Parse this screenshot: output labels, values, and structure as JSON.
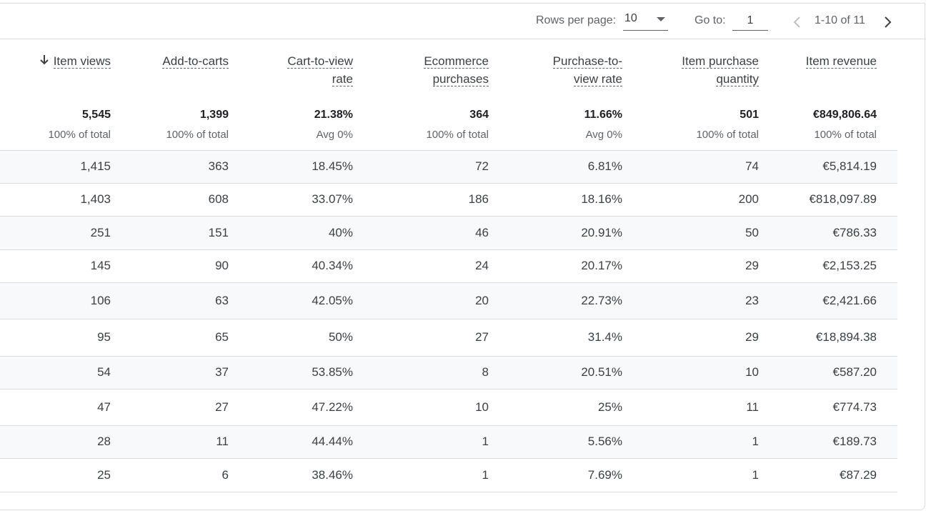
{
  "pager": {
    "rows_per_page_label": "Rows per page:",
    "rows_per_page_value": "10",
    "goto_label": "Go to:",
    "goto_value": "1",
    "range_text": "1-10 of 11"
  },
  "columns": [
    {
      "key": "item_views",
      "label_lines": [
        "Item views"
      ],
      "sorted": true
    },
    {
      "key": "add_to_carts",
      "label_lines": [
        "Add-to-carts"
      ]
    },
    {
      "key": "cart_to_view",
      "label_lines": [
        "Cart-to-view",
        "rate"
      ]
    },
    {
      "key": "ecom_purchases",
      "label_lines": [
        "Ecommerce",
        "purchases"
      ]
    },
    {
      "key": "purchase_to_view",
      "label_lines": [
        "Purchase-to-",
        "view rate"
      ]
    },
    {
      "key": "item_qty",
      "label_lines": [
        "Item purchase",
        "quantity"
      ]
    },
    {
      "key": "item_revenue",
      "label_lines": [
        "Item revenue"
      ]
    }
  ],
  "totals": [
    {
      "value": "5,545",
      "sub": "100% of total"
    },
    {
      "value": "1,399",
      "sub": "100% of total"
    },
    {
      "value": "21.38%",
      "sub": "Avg 0%"
    },
    {
      "value": "364",
      "sub": "100% of total"
    },
    {
      "value": "11.66%",
      "sub": "Avg 0%"
    },
    {
      "value": "501",
      "sub": "100% of total"
    },
    {
      "value": "€849,806.64",
      "sub": "100% of total"
    }
  ],
  "rows": [
    [
      "1,415",
      "363",
      "18.45%",
      "72",
      "6.81%",
      "74",
      "€5,814.19"
    ],
    [
      "1,403",
      "608",
      "33.07%",
      "186",
      "18.16%",
      "200",
      "€818,097.89"
    ],
    [
      "251",
      "151",
      "40%",
      "46",
      "20.91%",
      "50",
      "€786.33"
    ],
    [
      "145",
      "90",
      "40.34%",
      "24",
      "20.17%",
      "29",
      "€2,153.25"
    ],
    [
      "106",
      "63",
      "42.05%",
      "20",
      "22.73%",
      "23",
      "€2,421.66"
    ],
    [
      "95",
      "65",
      "50%",
      "27",
      "31.4%",
      "29",
      "€18,894.38"
    ],
    [
      "54",
      "37",
      "53.85%",
      "8",
      "20.51%",
      "10",
      "€587.20"
    ],
    [
      "47",
      "27",
      "47.22%",
      "10",
      "25%",
      "11",
      "€774.73"
    ],
    [
      "28",
      "11",
      "44.44%",
      "1",
      "5.56%",
      "1",
      "€189.73"
    ],
    [
      "25",
      "6",
      "38.46%",
      "1",
      "7.69%",
      "1",
      "€87.29"
    ]
  ],
  "icons": {
    "sort": "arrow-down-icon",
    "prev": "chevron-left-icon",
    "next": "chevron-right-icon",
    "dropdown": "caret-down-icon"
  },
  "colors": {
    "row_alt": "#f8f9fa",
    "border": "#dadce0",
    "text": "#3c4043",
    "muted": "#5f6368"
  }
}
